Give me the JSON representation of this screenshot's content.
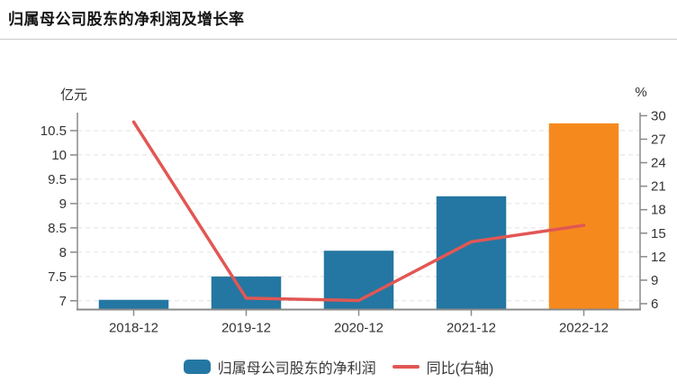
{
  "header": {
    "title": "归属母公司股东的净利润及增长率"
  },
  "colors": {
    "bar_blue": "#2477A2",
    "bar_orange": "#F6891E",
    "line_red": "#E15754",
    "axis_line": "#8A8A8A",
    "grid_line": "#E1E1E1",
    "tick_text": "#333333",
    "title_text": "#141414",
    "legend_text": "#383838",
    "divider": "#C9C9C9"
  },
  "chart_data": {
    "type": "bar+line",
    "title": "归属母公司股东的净利润及增长率",
    "categories": [
      "2018-12",
      "2019-12",
      "2020-12",
      "2021-12",
      "2022-12"
    ],
    "series": [
      {
        "name": "归属母公司股东的净利润",
        "kind": "bar",
        "axis": "left",
        "unit": "亿元",
        "values": [
          7.02,
          7.5,
          8.03,
          9.15,
          10.65
        ],
        "bar_colors": [
          "#2477A2",
          "#2477A2",
          "#2477A2",
          "#2477A2",
          "#F6891E"
        ]
      },
      {
        "name": "同比(右轴)",
        "kind": "line",
        "axis": "right",
        "unit": "%",
        "values": [
          29.2,
          6.7,
          6.4,
          13.9,
          16.0
        ],
        "color": "#E15754"
      }
    ],
    "left_axis": {
      "label": "亿元",
      "ticks": [
        7,
        7.5,
        8,
        8.5,
        9,
        9.5,
        10,
        10.5
      ],
      "min": 6.82,
      "max": 10.87
    },
    "right_axis": {
      "label": "%",
      "ticks": [
        6,
        9,
        12,
        15,
        18,
        21,
        24,
        27,
        30
      ],
      "min": 5.25,
      "max": 30.39
    },
    "grid": "horizontal-dashed-on-left-ticks",
    "legend_position": "bottom-center"
  }
}
